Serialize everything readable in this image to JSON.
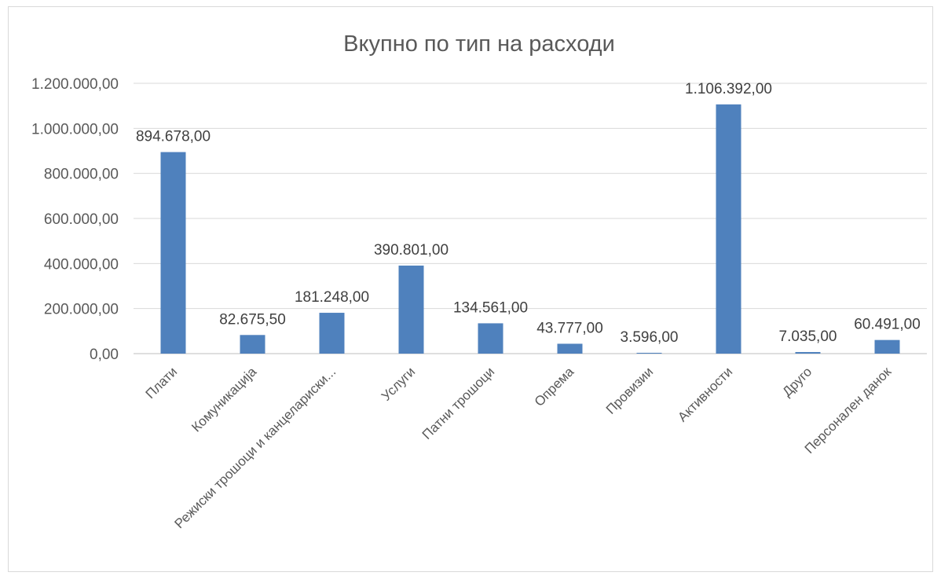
{
  "chart_data": {
    "type": "bar",
    "title": "Вкупно по тип на расходи",
    "xlabel": "",
    "ylabel": "",
    "ylim": [
      0,
      1200000
    ],
    "y_ticks": [
      0,
      200000,
      400000,
      600000,
      800000,
      1000000,
      1200000
    ],
    "y_tick_labels": [
      "0,00",
      "200.000,00",
      "400.000,00",
      "600.000,00",
      "800.000,00",
      "1.000.000,00",
      "1.200.000,00"
    ],
    "grid": true,
    "legend": "none",
    "bar_color": "#4f81bd",
    "categories": [
      "Плати",
      "Комуникација",
      "Режиски трошоци и канцелариски...",
      "Услуги",
      "Патни трошоци",
      "Опрема",
      "Провизии",
      "Активности",
      "Друго",
      "Персонален данок"
    ],
    "values": [
      894678,
      82675.5,
      181248,
      390801,
      134561,
      43777,
      3596,
      1106392,
      7035,
      60491
    ],
    "data_labels": [
      "894.678,00",
      "82.675,50",
      "181.248,00",
      "390.801,00",
      "134.561,00",
      "43.777,00",
      "3.596,00",
      "1.106.392,00",
      "7.035,00",
      "60.491,00"
    ]
  }
}
